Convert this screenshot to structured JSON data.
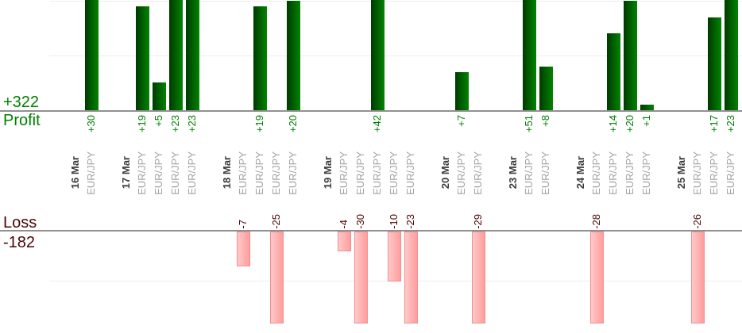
{
  "summary": {
    "profit_total_label": "+322",
    "profit_row_label": "Profit",
    "loss_row_label": "Loss",
    "loss_total_label": "-182"
  },
  "colors": {
    "profit_text": "#008000",
    "profit_bar_dark": "#003a00",
    "profit_bar_light": "#018401",
    "loss_text": "#4a0404",
    "loss_bar_light": "#ffc9c9",
    "loss_bar_dark": "#ff9d9d",
    "loss_bar_border": "#f29090",
    "date_text": "#3d3d3d",
    "symbol_text": "#a3a3a3",
    "baseline": "#909090",
    "gridline": "#ededed"
  },
  "chart_data": {
    "type": "bar",
    "title": "",
    "layout": "profit bars above upper baseline, loss bars hanging below lower baseline, columns labeled vertically with date and symbol",
    "value_label_format": "signed integer, rotated 90deg",
    "gridline_interval": 10,
    "profit_total": 322,
    "loss_total": -182,
    "profit_values_in_order": [
      30,
      19,
      5,
      23,
      23,
      19,
      20,
      42,
      7,
      51,
      8,
      14,
      20,
      1,
      17,
      23
    ],
    "loss_values_in_order": [
      -7,
      -25,
      -4,
      -30,
      -10,
      -23,
      -29,
      -28,
      -26
    ],
    "days": [
      {
        "date": "16 Mar",
        "trades": [
          {
            "symbol": "EUR/JPY",
            "value": 30
          }
        ]
      },
      {
        "date": "17 Mar",
        "trades": [
          {
            "symbol": "EUR/JPY",
            "value": 19
          },
          {
            "symbol": "EUR/JPY",
            "value": 5
          },
          {
            "symbol": "EUR/JPY",
            "value": 23
          },
          {
            "symbol": "EUR/JPY",
            "value": 23
          }
        ]
      },
      {
        "date": "18 Mar",
        "trades": [
          {
            "symbol": "EUR/JPY",
            "value": -7
          },
          {
            "symbol": "EUR/JPY",
            "value": 19
          },
          {
            "symbol": "EUR/JPY",
            "value": -25
          },
          {
            "symbol": "EUR/JPY",
            "value": 20
          }
        ]
      },
      {
        "date": "19 Mar",
        "trades": [
          {
            "symbol": "EUR/JPY",
            "value": -4
          },
          {
            "symbol": "EUR/JPY",
            "value": -30
          },
          {
            "symbol": "EUR/JPY",
            "value": 42
          },
          {
            "symbol": "EUR/JPY",
            "value": -10
          },
          {
            "symbol": "EUR/JPY",
            "value": -23
          }
        ]
      },
      {
        "date": "20 Mar",
        "trades": [
          {
            "symbol": "EUR/JPY",
            "value": 7
          },
          {
            "symbol": "EUR/JPY",
            "value": -29
          }
        ]
      },
      {
        "date": "23 Mar",
        "trades": [
          {
            "symbol": "EUR/JPY",
            "value": 51
          },
          {
            "symbol": "EUR/JPY",
            "value": 8
          }
        ]
      },
      {
        "date": "24 Mar",
        "trades": [
          {
            "symbol": "EUR/JPY",
            "value": -28
          },
          {
            "symbol": "EUR/JPY",
            "value": 14
          },
          {
            "symbol": "EUR/JPY",
            "value": 20
          },
          {
            "symbol": "EUR/JPY",
            "value": 1
          }
        ]
      },
      {
        "date": "25 Mar",
        "trades": [
          {
            "symbol": "EUR/JPY",
            "value": -26
          },
          {
            "symbol": "EUR/JPY",
            "value": 17
          },
          {
            "symbol": "EUR/JPY",
            "value": 23
          }
        ]
      }
    ]
  }
}
